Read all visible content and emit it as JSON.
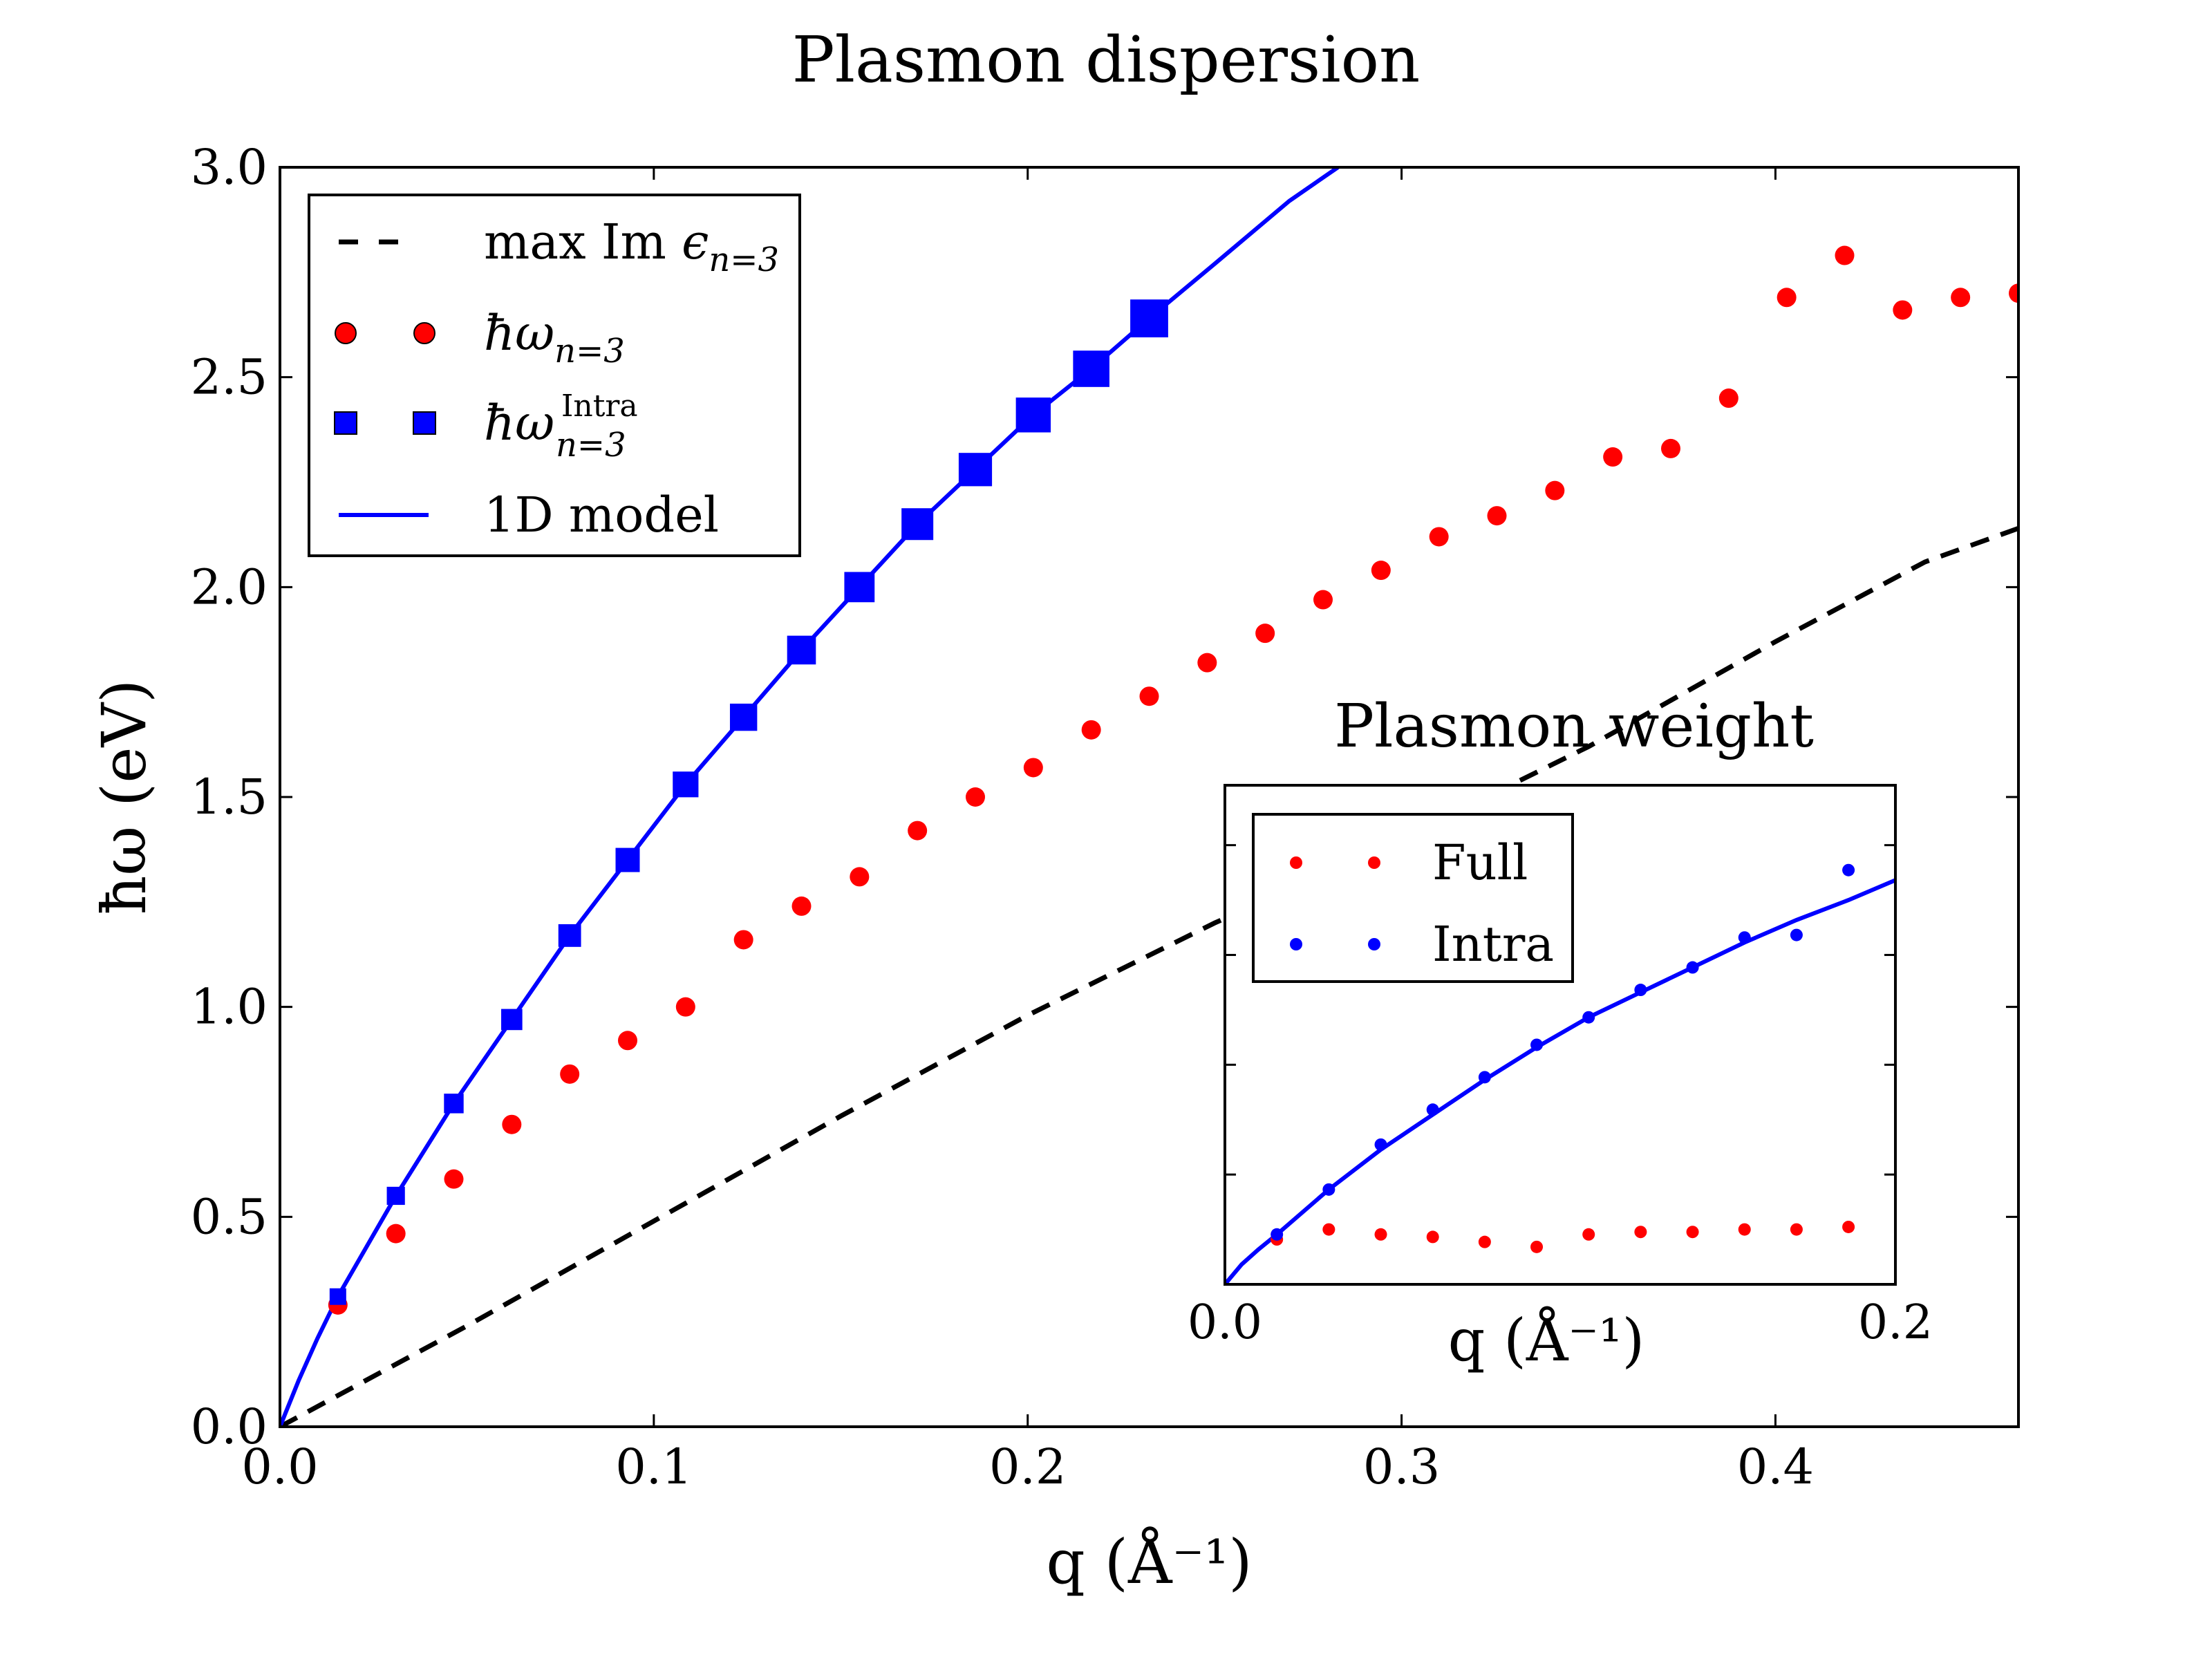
{
  "chart_data": {
    "main": {
      "type": "scatter",
      "title": "Plasmon dispersion",
      "xlabel": "q (Å⁻¹)",
      "ylabel": "ħω (eV)",
      "xlim": [
        0.0,
        0.465
      ],
      "ylim": [
        0.0,
        3.0
      ],
      "xticks": [
        "0.0",
        "0.1",
        "0.2",
        "0.3",
        "0.4"
      ],
      "xtick_values": [
        0.0,
        0.1,
        0.2,
        0.3,
        0.4
      ],
      "yticks": [
        "0.0",
        "0.5",
        "1.0",
        "1.5",
        "2.0",
        "2.5",
        "3.0"
      ],
      "ytick_values": [
        0.0,
        0.5,
        1.0,
        1.5,
        2.0,
        2.5,
        3.0
      ],
      "grid": false,
      "legend_position": "top-left",
      "series": [
        {
          "name": "max Im ε_{n=3}",
          "style": "dashed-line",
          "color": "#000000",
          "x": [
            0.0,
            0.05,
            0.1,
            0.15,
            0.2,
            0.25,
            0.3,
            0.35,
            0.4,
            0.44,
            0.465
          ],
          "y": [
            0.0,
            0.24,
            0.49,
            0.74,
            0.98,
            1.2,
            1.4,
            1.62,
            1.87,
            2.06,
            2.14
          ]
        },
        {
          "name": "ħω_{n=3}",
          "style": "circle",
          "color": "#ff0000",
          "x": [
            0.0155,
            0.031,
            0.0465,
            0.062,
            0.0775,
            0.093,
            0.1085,
            0.124,
            0.1395,
            0.155,
            0.1705,
            0.186,
            0.2015,
            0.217,
            0.2325,
            0.248,
            0.2635,
            0.279,
            0.2945,
            0.31,
            0.3255,
            0.341,
            0.3565,
            0.372,
            0.3875,
            0.403,
            0.4185,
            0.434,
            0.4495,
            0.465
          ],
          "y": [
            0.29,
            0.46,
            0.59,
            0.72,
            0.84,
            0.92,
            1.0,
            1.16,
            1.24,
            1.31,
            1.42,
            1.5,
            1.57,
            1.66,
            1.74,
            1.82,
            1.89,
            1.97,
            2.04,
            2.12,
            2.17,
            2.23,
            2.31,
            2.33,
            2.45,
            2.69,
            2.79,
            2.66,
            2.69,
            2.7
          ]
        },
        {
          "name": "ħω_{n=3}^{Intra}",
          "style": "square",
          "color": "#0000ff",
          "x": [
            0.0155,
            0.031,
            0.0465,
            0.062,
            0.0775,
            0.093,
            0.1085,
            0.124,
            0.1395,
            0.155,
            0.1705,
            0.186,
            0.2015,
            0.217,
            0.2325
          ],
          "y": [
            0.31,
            0.55,
            0.77,
            0.97,
            1.17,
            1.35,
            1.53,
            1.69,
            1.85,
            2.0,
            2.15,
            2.28,
            2.41,
            2.52,
            2.64
          ]
        },
        {
          "name": "1D model",
          "style": "solid-line",
          "color": "#0000ff",
          "x": [
            0.0,
            0.005,
            0.01,
            0.0155,
            0.031,
            0.0465,
            0.062,
            0.0775,
            0.093,
            0.1085,
            0.124,
            0.1395,
            0.155,
            0.1705,
            0.186,
            0.2015,
            0.217,
            0.2325,
            0.25,
            0.27,
            0.283
          ],
          "y": [
            0.0,
            0.11,
            0.21,
            0.31,
            0.55,
            0.77,
            0.97,
            1.17,
            1.35,
            1.53,
            1.69,
            1.85,
            2.0,
            2.15,
            2.28,
            2.41,
            2.52,
            2.64,
            2.77,
            2.92,
            3.0
          ]
        }
      ],
      "legend": [
        {
          "label": "max Im ",
          "sub_symbol": "ϵ",
          "sub": "n=3",
          "sup": ""
        },
        {
          "label": "",
          "sub_symbol": "ħω",
          "sub": "n=3",
          "sup": ""
        },
        {
          "label": "",
          "sub_symbol": "ħω",
          "sub": "n=3",
          "sup": "Intra"
        },
        {
          "label": "1D model",
          "sub_symbol": "",
          "sub": "",
          "sup": ""
        }
      ]
    },
    "inset": {
      "type": "scatter",
      "title": "Plasmon weight",
      "xlabel": "q (Å⁻¹)",
      "xlim": [
        0.0,
        0.2
      ],
      "xticks": [
        "0.0",
        "0.2"
      ],
      "xtick_values": [
        0.0,
        0.2
      ],
      "ylim": [
        0.0,
        1.0
      ],
      "ytick_values": [
        0.22,
        0.44,
        0.66,
        0.88
      ],
      "legend_position": "top-left",
      "series": [
        {
          "name": "Full",
          "style": "dot",
          "color": "#ff0000",
          "x": [
            0.0155,
            0.031,
            0.0465,
            0.062,
            0.0775,
            0.093,
            0.1085,
            0.124,
            0.1395,
            0.155,
            0.1705,
            0.186
          ],
          "y": [
            0.09,
            0.11,
            0.1,
            0.095,
            0.085,
            0.075,
            0.1,
            0.105,
            0.105,
            0.11,
            0.11,
            0.115
          ]
        },
        {
          "name": "Intra",
          "style": "dot",
          "color": "#0000ff",
          "x": [
            0.0155,
            0.031,
            0.0465,
            0.062,
            0.0775,
            0.093,
            0.1085,
            0.124,
            0.1395,
            0.155,
            0.1705,
            0.186
          ],
          "y": [
            0.1,
            0.19,
            0.28,
            0.35,
            0.415,
            0.48,
            0.535,
            0.59,
            0.635,
            0.695,
            0.7,
            0.83
          ]
        },
        {
          "name": "",
          "style": "solid-line",
          "color": "#0000ff",
          "x": [
            0.0,
            0.005,
            0.01,
            0.0155,
            0.031,
            0.0465,
            0.062,
            0.0775,
            0.093,
            0.1085,
            0.124,
            0.1395,
            0.155,
            0.1705,
            0.186,
            0.2
          ],
          "y": [
            0.0,
            0.04,
            0.07,
            0.1,
            0.19,
            0.27,
            0.34,
            0.41,
            0.475,
            0.535,
            0.585,
            0.635,
            0.685,
            0.73,
            0.77,
            0.81
          ]
        }
      ],
      "legend": [
        {
          "label": "Full"
        },
        {
          "label": "Intra"
        }
      ]
    }
  }
}
